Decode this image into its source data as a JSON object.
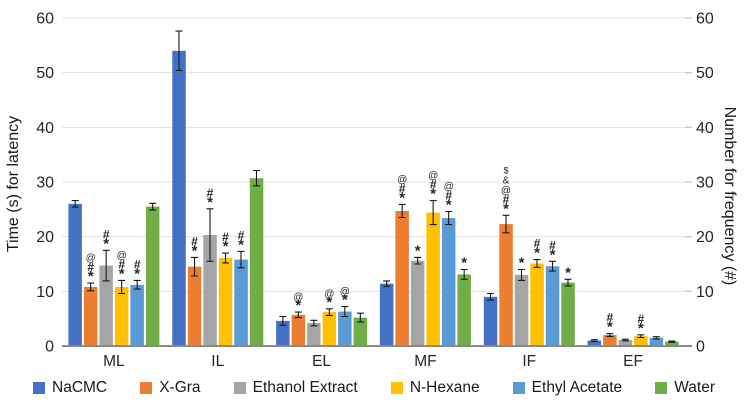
{
  "chart_data": {
    "type": "bar",
    "title": "",
    "categories": [
      "ML",
      "IL",
      "EL",
      "MF",
      "IF",
      "EF"
    ],
    "series": [
      {
        "name": "NaCMC",
        "color": "#4472C4",
        "values": [
          26.0,
          54.0,
          4.6,
          11.4,
          9.0,
          1.0
        ],
        "errors": [
          0.6,
          3.6,
          0.8,
          0.5,
          0.6,
          0.15
        ],
        "annotations": [
          [],
          [],
          [],
          [],
          [],
          []
        ]
      },
      {
        "name": "X-Gra",
        "color": "#ED7D31",
        "values": [
          10.8,
          14.5,
          5.7,
          24.7,
          22.3,
          2.0
        ],
        "errors": [
          0.7,
          1.7,
          0.5,
          1.2,
          1.6,
          0.25
        ],
        "annotations": [
          [
            "@",
            "#",
            "*"
          ],
          [
            "#",
            "*"
          ],
          [
            "@",
            "*"
          ],
          [
            "@",
            "#",
            "*"
          ],
          [
            "$",
            "&",
            "@",
            "#",
            "*"
          ],
          [
            "#",
            "*"
          ]
        ]
      },
      {
        "name": "Ethanol Extract",
        "color": "#A5A5A5",
        "values": [
          14.7,
          20.3,
          4.2,
          15.6,
          13.0,
          1.1
        ],
        "errors": [
          2.8,
          4.8,
          0.5,
          0.6,
          1.0,
          0.15
        ],
        "annotations": [
          [
            "#",
            "*"
          ],
          [
            "#",
            "*"
          ],
          [],
          [
            "*"
          ],
          [
            "*"
          ],
          []
        ]
      },
      {
        "name": "N-Hexane",
        "color": "#FFC000",
        "values": [
          10.8,
          16.1,
          6.2,
          24.4,
          15.1,
          1.8
        ],
        "errors": [
          1.2,
          0.9,
          0.6,
          2.2,
          0.7,
          0.25
        ],
        "annotations": [
          [
            "@",
            "#",
            "*"
          ],
          [
            "#",
            "*"
          ],
          [
            "@",
            "*"
          ],
          [
            "@",
            "#",
            "*"
          ],
          [
            "#",
            "*"
          ],
          [
            "#",
            "*"
          ]
        ]
      },
      {
        "name": "Ethyl Acetate",
        "color": "#5B9BD5",
        "values": [
          11.2,
          15.8,
          6.3,
          23.4,
          14.6,
          1.5
        ],
        "errors": [
          0.8,
          1.5,
          0.9,
          1.2,
          0.9,
          0.2
        ],
        "annotations": [
          [
            "#",
            "*"
          ],
          [
            "#",
            "*"
          ],
          [
            "@",
            "*"
          ],
          [
            "@",
            "#",
            "*"
          ],
          [
            "#",
            "*"
          ],
          []
        ]
      },
      {
        "name": "Water",
        "color": "#70AD47",
        "values": [
          25.5,
          30.7,
          5.2,
          13.1,
          11.6,
          0.8
        ],
        "errors": [
          0.6,
          1.4,
          0.8,
          0.9,
          0.6,
          0.1
        ],
        "annotations": [
          [],
          [],
          [],
          [
            "*"
          ],
          [
            "*"
          ],
          []
        ]
      }
    ],
    "ylabel_left": "Time (s) for latency",
    "ylabel_right": "Number for frequency (#)",
    "yticks": [
      0,
      10,
      20,
      30,
      40,
      50,
      60
    ],
    "ylim": [
      0,
      60
    ],
    "grid": true,
    "legend_position": "bottom"
  },
  "colors": {
    "gridline": "#E3E3E3",
    "axis_line": "#8A8A8A",
    "tick_mark": "#C0C0C0",
    "error_bar": "#1A1A1A"
  }
}
